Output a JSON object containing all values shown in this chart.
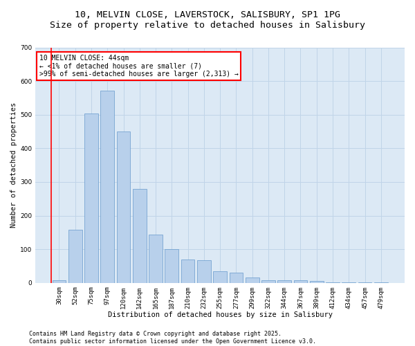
{
  "title_line1": "10, MELVIN CLOSE, LAVERSTOCK, SALISBURY, SP1 1PG",
  "title_line2": "Size of property relative to detached houses in Salisbury",
  "xlabel": "Distribution of detached houses by size in Salisbury",
  "ylabel": "Number of detached properties",
  "categories": [
    "30sqm",
    "52sqm",
    "75sqm",
    "97sqm",
    "120sqm",
    "142sqm",
    "165sqm",
    "187sqm",
    "210sqm",
    "232sqm",
    "255sqm",
    "277sqm",
    "299sqm",
    "322sqm",
    "344sqm",
    "367sqm",
    "389sqm",
    "412sqm",
    "434sqm",
    "457sqm",
    "479sqm"
  ],
  "values": [
    7,
    157,
    503,
    571,
    449,
    280,
    143,
    100,
    70,
    67,
    35,
    30,
    15,
    8,
    8,
    8,
    5,
    2,
    1,
    1,
    2
  ],
  "bar_color": "#b8d0eb",
  "bar_edge_color": "#6699cc",
  "ylim": [
    0,
    700
  ],
  "yticks": [
    0,
    100,
    200,
    300,
    400,
    500,
    600,
    700
  ],
  "grid_color": "#c0d4e8",
  "background_color": "#dce9f5",
  "annotation_line1": "10 MELVIN CLOSE: 44sqm",
  "annotation_line2": "← <1% of detached houses are smaller (7)",
  "annotation_line3": ">99% of semi-detached houses are larger (2,313) →",
  "footer_line1": "Contains HM Land Registry data © Crown copyright and database right 2025.",
  "footer_line2": "Contains public sector information licensed under the Open Government Licence v3.0.",
  "title_fontsize": 9.5,
  "axis_label_fontsize": 7.5,
  "tick_fontsize": 6.5,
  "annotation_fontsize": 7,
  "footer_fontsize": 6
}
